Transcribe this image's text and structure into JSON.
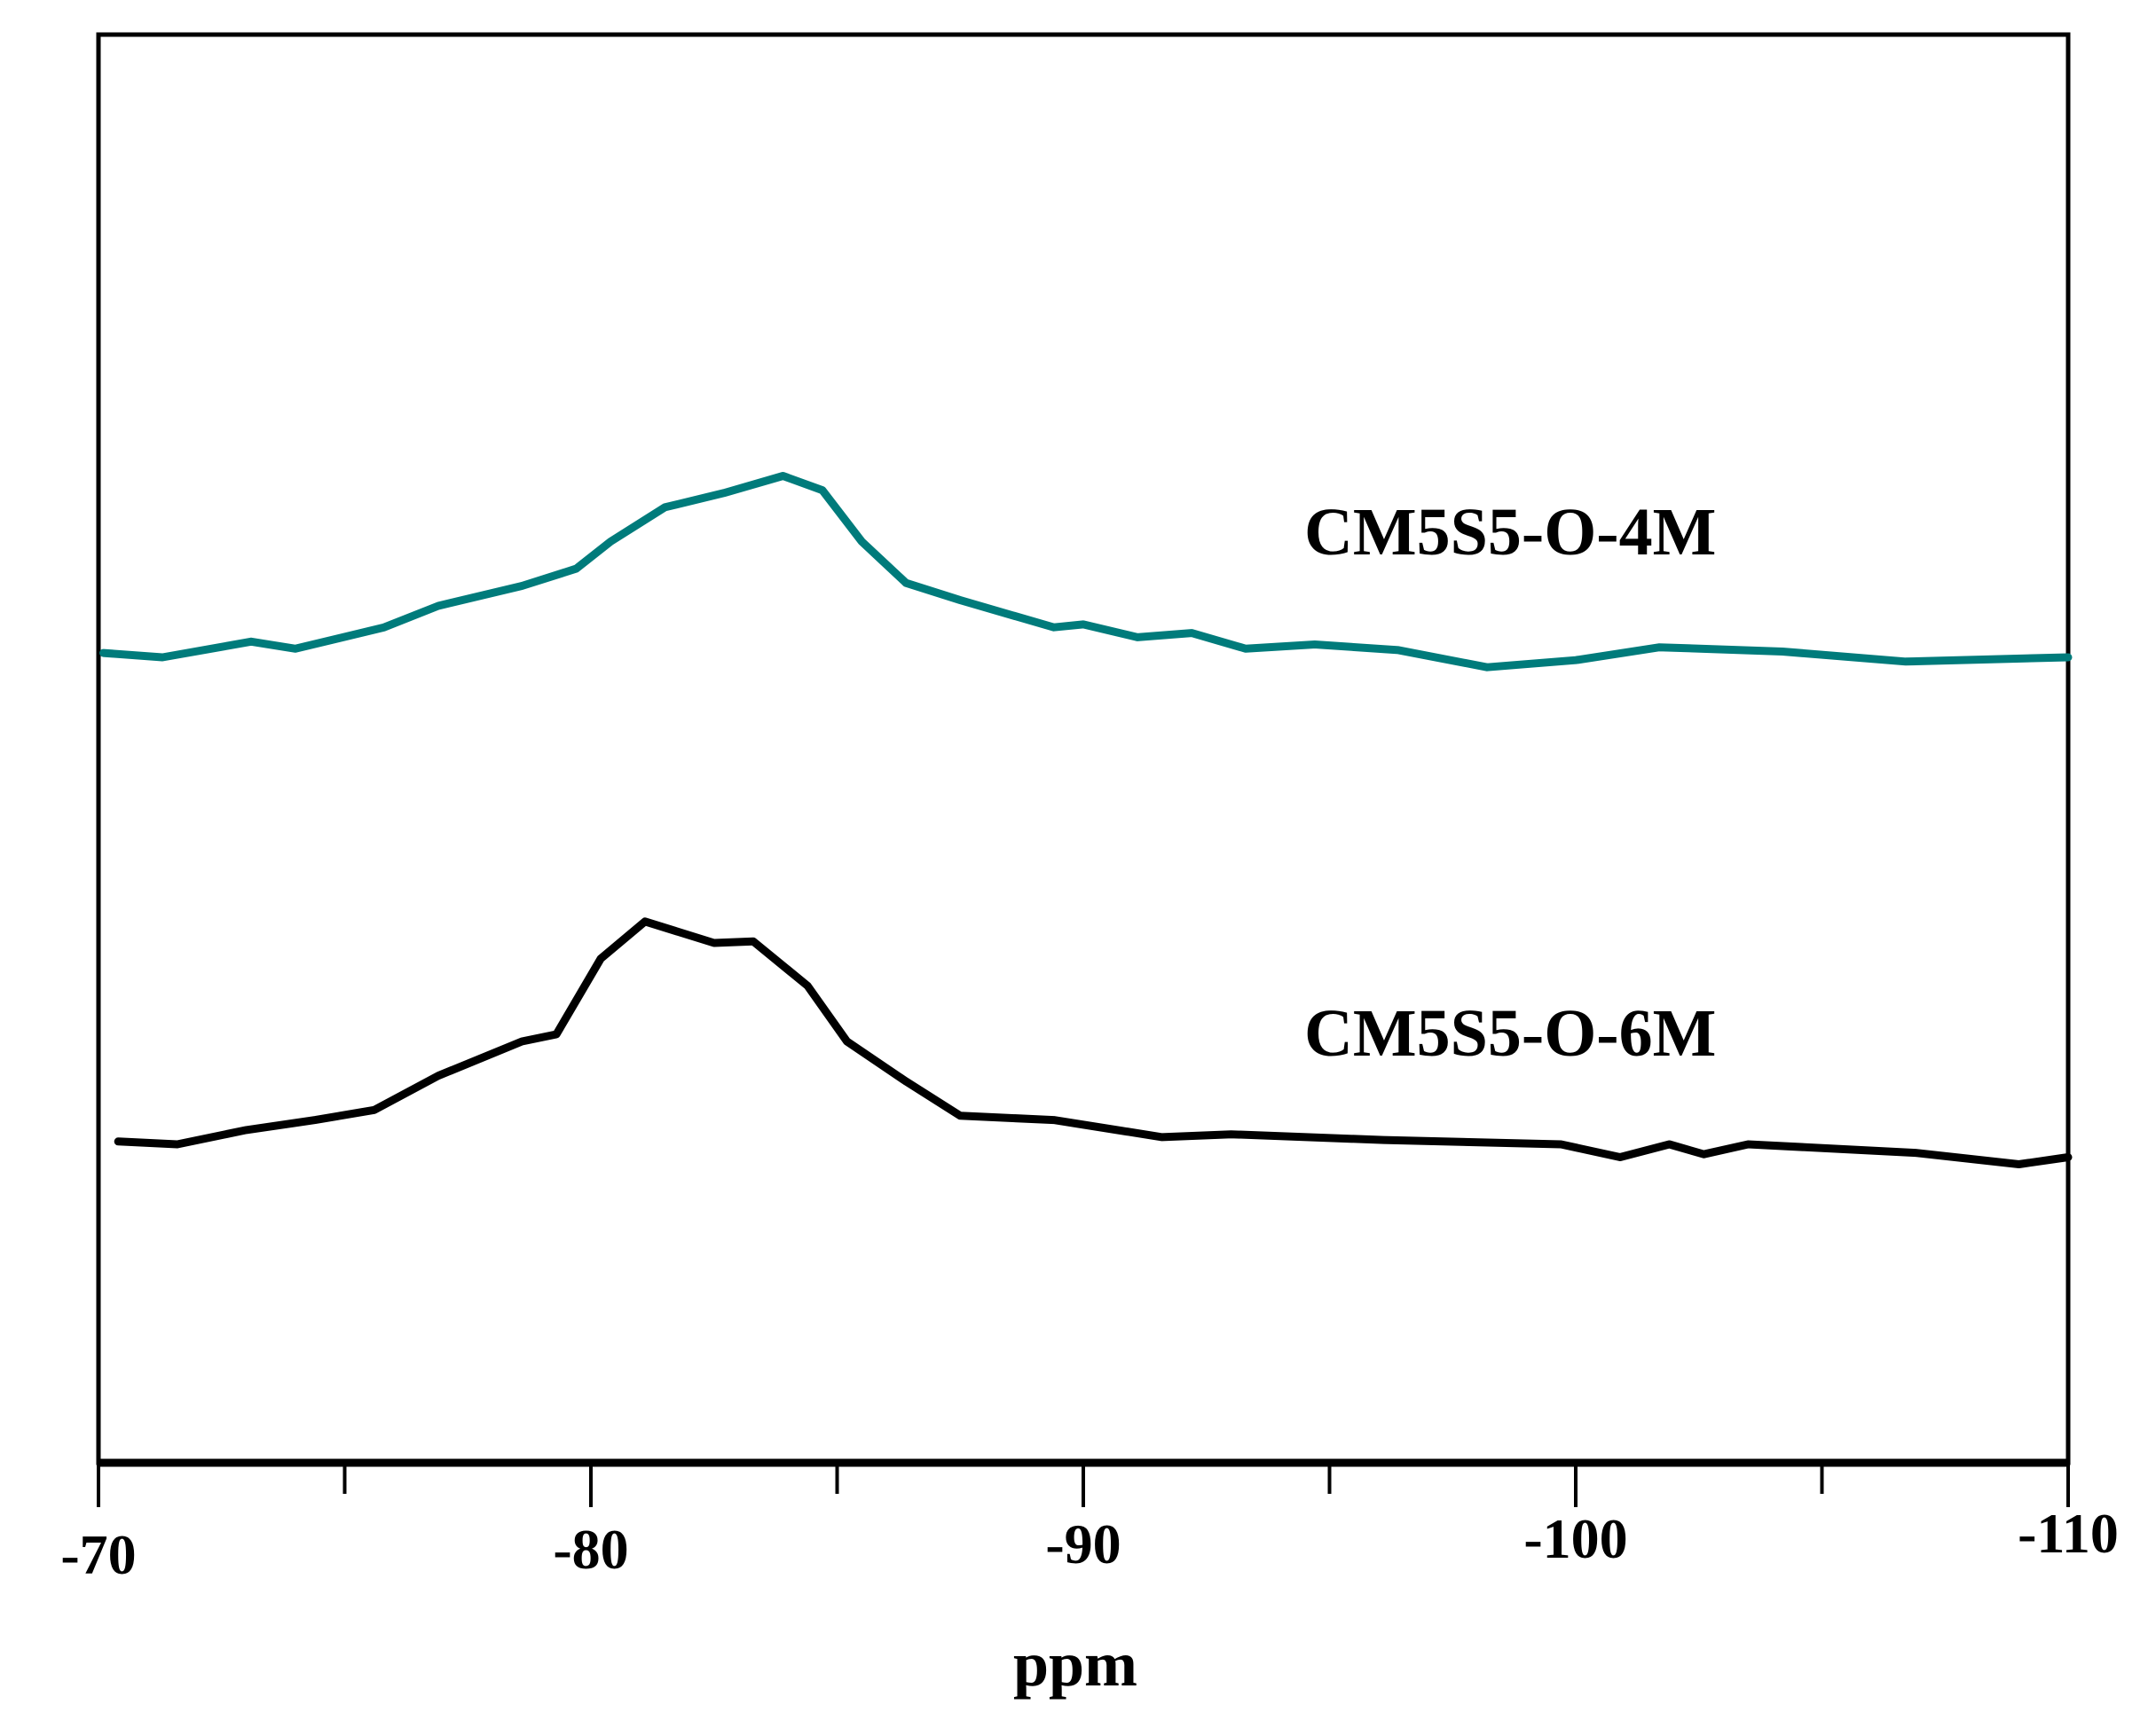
{
  "chart_data": {
    "type": "line",
    "xlabel": "ppm",
    "ylabel": "",
    "title": "",
    "xlim": [
      -70,
      -110
    ],
    "x_reversed": true,
    "ylim": [
      0,
      100
    ],
    "y_units": "arbitrary intensity (no y-axis ticks shown)",
    "x_ticks": [
      -70,
      -80,
      -90,
      -100,
      -110
    ],
    "x_tick_labels": [
      "-70",
      "-80",
      "-90",
      "-100",
      "-110"
    ],
    "x_minor_ticks": [
      -75,
      -85,
      -95,
      -105
    ],
    "grid": false,
    "series": [
      {
        "name": "CM5S5-O-4M",
        "color": "#007b7b",
        "x": [
          -70.1,
          -71.3,
          -73.1,
          -74.0,
          -75.8,
          -76.9,
          -78.6,
          -79.7,
          -80.4,
          -81.5,
          -82.7,
          -83.9,
          -84.7,
          -85.5,
          -86.4,
          -87.5,
          -89.4,
          -90.0,
          -91.1,
          -92.2,
          -93.3,
          -94.7,
          -96.4,
          -98.2,
          -100.0,
          -101.7,
          -104.2,
          -106.7,
          -110.0
        ],
        "y": [
          56.7,
          56.4,
          57.5,
          57.0,
          58.5,
          60.0,
          61.4,
          62.6,
          64.5,
          66.9,
          67.9,
          69.1,
          68.1,
          64.5,
          61.6,
          60.4,
          58.5,
          58.7,
          57.8,
          58.1,
          57.0,
          57.3,
          56.9,
          55.7,
          56.2,
          57.1,
          56.8,
          56.1,
          56.4
        ]
      },
      {
        "name": "CM5S5-O-6M",
        "color": "#000000",
        "x": [
          -70.4,
          -71.6,
          -73.0,
          -74.4,
          -75.6,
          -76.9,
          -78.6,
          -79.3,
          -80.2,
          -81.1,
          -82.5,
          -83.3,
          -84.4,
          -85.2,
          -86.4,
          -87.5,
          -89.4,
          -91.6,
          -93.0,
          -96.1,
          -99.7,
          -100.9,
          -101.9,
          -102.6,
          -103.5,
          -106.9,
          -109.0,
          -110.0
        ],
        "y": [
          22.5,
          22.3,
          23.3,
          24.0,
          24.7,
          27.1,
          29.5,
          30.0,
          35.3,
          37.9,
          36.4,
          36.5,
          33.4,
          29.5,
          26.7,
          24.3,
          24.0,
          22.8,
          23.0,
          22.6,
          22.3,
          21.4,
          22.3,
          21.6,
          22.3,
          21.7,
          20.9,
          21.4
        ]
      }
    ],
    "annotations": [
      "CM5S5-O-4M",
      "CM5S5-O-6M"
    ]
  }
}
